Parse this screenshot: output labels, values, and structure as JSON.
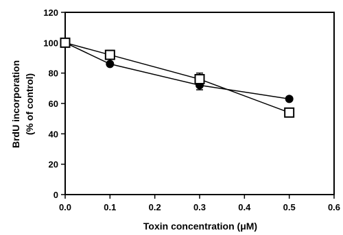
{
  "chart_data": {
    "type": "line",
    "title": "",
    "xlabel": "Toxin concentration (μM)",
    "ylabel_lines": [
      "BrdU incorporation",
      "(% of control)"
    ],
    "xlim": [
      0,
      0.6
    ],
    "ylim": [
      0,
      120
    ],
    "xticks": [
      "0.0",
      "0.1",
      "0.2",
      "0.3",
      "0.4",
      "0.5",
      "0.6"
    ],
    "yticks": [
      "0",
      "20",
      "40",
      "60",
      "80",
      "100",
      "120"
    ],
    "grid": false,
    "legend": "none",
    "series": [
      {
        "marker": "filled-circle",
        "color": "#000000",
        "x": [
          0.0,
          0.1,
          0.3,
          0.5
        ],
        "y": [
          100,
          86,
          72,
          63
        ],
        "yerr": [
          1,
          1,
          3,
          1
        ]
      },
      {
        "marker": "open-square",
        "color": "#000000",
        "x": [
          0.0,
          0.1,
          0.3,
          0.5
        ],
        "y": [
          100,
          92,
          76,
          54
        ],
        "yerr": [
          1,
          3,
          4,
          2
        ]
      }
    ]
  }
}
